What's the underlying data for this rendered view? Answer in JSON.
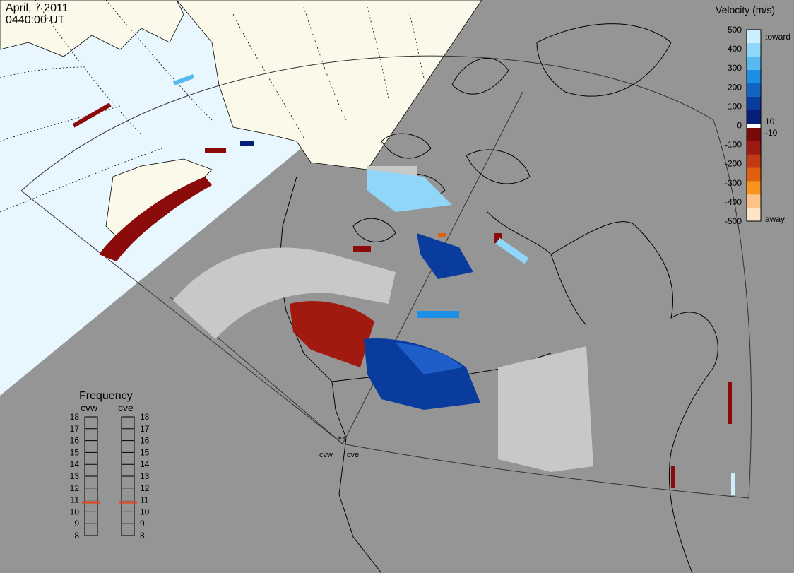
{
  "header": {
    "date": "April, 7 2011",
    "time": "0440:00 UT"
  },
  "colors": {
    "night": "#959595",
    "day_ocean": "#e8f6fd",
    "day_land": "#fbf9ea",
    "ground_scatter": "#c8c8c8"
  },
  "stations": [
    {
      "code": "cvw"
    },
    {
      "code": "cve"
    }
  ],
  "velocity_scale": {
    "title": "Velocity (m/s)",
    "toward_label": "toward",
    "away_label": "away",
    "ticks": [
      "500",
      "400",
      "300",
      "200",
      "100",
      "0",
      "-100",
      "-200",
      "-300",
      "-400",
      "-500"
    ],
    "inner_ticks": [
      "10",
      "-10"
    ],
    "colors": [
      "#cdeefc",
      "#8fd6f8",
      "#56baf0",
      "#1e8fe6",
      "#1364c4",
      "#0a3c9e",
      "#061f7a",
      "#7a0a0a",
      "#9c1a12",
      "#c33a14",
      "#e0600e",
      "#f7941e",
      "#fcc28a",
      "#fde3c8"
    ]
  },
  "frequency": {
    "title": "Frequency",
    "radars": [
      "cvw",
      "cve"
    ],
    "levels": [
      "18",
      "17",
      "16",
      "15",
      "14",
      "13",
      "12",
      "11",
      "10",
      "9",
      "8"
    ],
    "values_mhz": [
      10.8,
      10.8
    ],
    "marker_color": "#e0431a"
  }
}
